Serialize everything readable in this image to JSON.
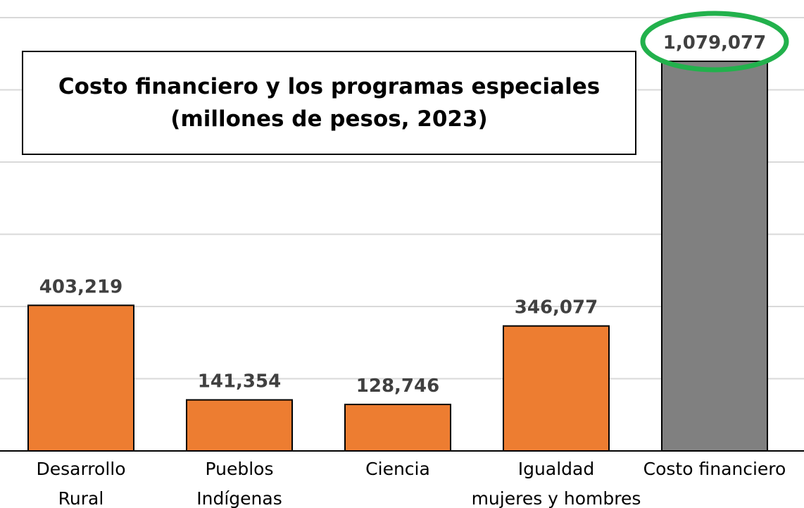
{
  "chart_data": {
    "type": "bar",
    "title_lines": [
      "Costo financiero y los programas especiales",
      "(millones de pesos, 2023)"
    ],
    "categories": [
      [
        "Desarrollo",
        "Rural"
      ],
      [
        "Pueblos",
        "Indígenas"
      ],
      [
        "Ciencia"
      ],
      [
        "Igualdad",
        "mujeres y hombres"
      ],
      [
        "Costo financiero"
      ]
    ],
    "values": [
      403219,
      141354,
      128746,
      346077,
      1079077
    ],
    "value_labels": [
      "403,219",
      "141,354",
      "128,746",
      "346,077",
      "1,079,077"
    ],
    "bar_colors": [
      "#ED7D31",
      "#ED7D31",
      "#ED7D31",
      "#ED7D31",
      "#808080"
    ],
    "highlight_color": "#22B14C",
    "highlighted_index": 4,
    "ylim": [
      0,
      1200000
    ],
    "y_gridline_step": 200000,
    "grid": true,
    "legend": "none",
    "xlabel": "",
    "ylabel": ""
  }
}
